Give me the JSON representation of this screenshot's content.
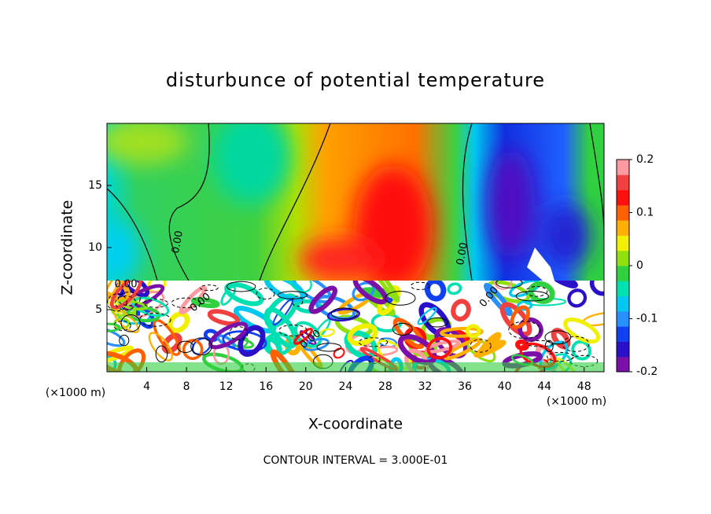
{
  "chart_data": {
    "type": "contour",
    "title": "disturbunce of potential temperature",
    "x_label": "X-coordinate",
    "y_label": "Z-coordinate",
    "x_unit_label": "(×1000 m)",
    "footer": "CONTOUR INTERVAL = 3.000E-01",
    "contour_label": "0.00",
    "xlim": [
      0,
      50
    ],
    "xticks": [
      4,
      8,
      12,
      16,
      20,
      24,
      28,
      32,
      36,
      40,
      44,
      48
    ],
    "ylim": [
      0,
      20
    ],
    "yticks": [
      5,
      10,
      15
    ],
    "clim": [
      -0.2,
      0.2
    ],
    "cticks": [
      0.2,
      0.1,
      0,
      -0.1,
      -0.2
    ],
    "colormap": [
      "#7a10a8",
      "#2a10c8",
      "#1040f0",
      "#2890ff",
      "#00c8f0",
      "#00e0b0",
      "#30d040",
      "#90e010",
      "#f0f000",
      "#ffb000",
      "#ff6000",
      "#ff1010",
      "#f04040",
      "#ff9aa0"
    ]
  }
}
